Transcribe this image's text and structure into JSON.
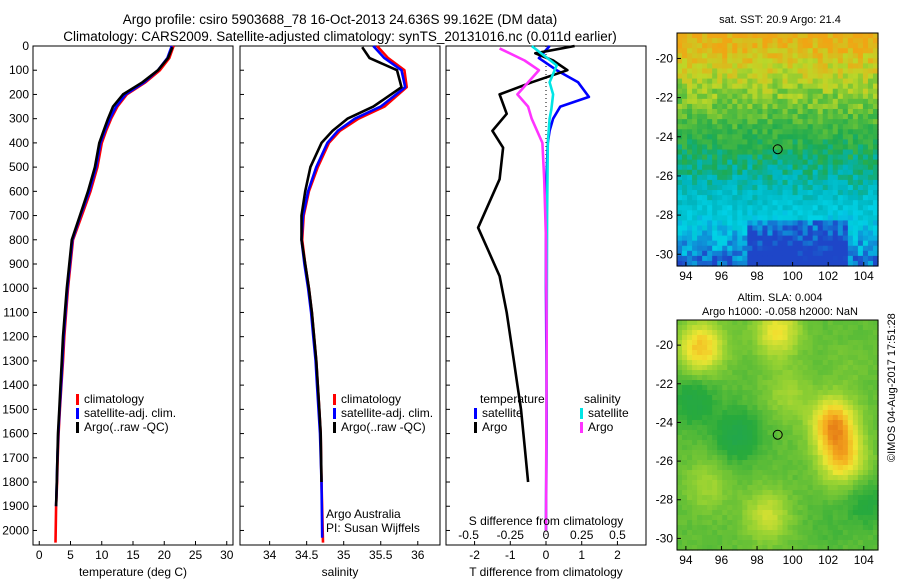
{
  "title": {
    "line1": "Argo profile: csiro 5903688_78 16-Oct-2013 24.636S 99.162E (DM data)",
    "line2": "Climatology: CARS2009. Satellite-adjusted climatology: synTS_20131016.nc (0.011d earlier)"
  },
  "credit": "©IMOS 04-Aug-2017 17:51:28",
  "colors": {
    "climatology": "#ff0000",
    "satellite": "#0000ff",
    "argo": "#000000",
    "sat_sal": "#00e5e5",
    "argo_sal": "#ff33ff"
  },
  "chart_data": [
    {
      "type": "line",
      "id": "temperature-profile",
      "xlabel": "temperature (deg C)",
      "ylabel": "pressure (dbar)",
      "xlim": [
        -1,
        31
      ],
      "ylim": [
        2060,
        0
      ],
      "xticks": [
        0,
        5,
        10,
        15,
        20,
        25,
        30
      ],
      "yticks": [
        0,
        100,
        200,
        300,
        400,
        500,
        600,
        700,
        800,
        900,
        1000,
        1100,
        1200,
        1300,
        1400,
        1500,
        1600,
        1700,
        1800,
        1900,
        2000
      ],
      "legend": [
        "climatology",
        "satellite-adj. clim.",
        "Argo(..raw -QC)"
      ],
      "series": [
        {
          "name": "climatology",
          "color": "#ff0000",
          "x": [
            21.5,
            20.8,
            19.3,
            17.0,
            14.0,
            12.5,
            11.5,
            10.7,
            10.0,
            9.3,
            8.2,
            6.8,
            5.4,
            5.0,
            4.6,
            4.3,
            4.0,
            3.8,
            3.55,
            3.3,
            3.1,
            2.95,
            2.85,
            2.7,
            2.6
          ],
          "y": [
            0,
            50,
            100,
            150,
            200,
            250,
            300,
            350,
            400,
            500,
            600,
            700,
            800,
            900,
            1000,
            1100,
            1200,
            1300,
            1400,
            1500,
            1600,
            1700,
            1800,
            1900,
            2050
          ]
        },
        {
          "name": "satellite-adj. clim.",
          "color": "#0000ff",
          "x": [
            21.2,
            20.5,
            19.0,
            16.8,
            13.8,
            12.3,
            11.3,
            10.5,
            9.8,
            9.1,
            8.0,
            6.6,
            5.3,
            4.9,
            4.5,
            4.2,
            3.9,
            3.7,
            3.5,
            3.25,
            3.05,
            2.9,
            2.8,
            2.7
          ],
          "y": [
            0,
            50,
            100,
            150,
            200,
            250,
            300,
            350,
            400,
            500,
            600,
            700,
            800,
            900,
            1000,
            1100,
            1200,
            1300,
            1400,
            1500,
            1600,
            1700,
            1800,
            1900
          ]
        },
        {
          "name": "Argo(..raw -QC)",
          "color": "#000000",
          "x": [
            21.3,
            20.6,
            19.0,
            16.5,
            13.4,
            11.8,
            11.0,
            10.3,
            9.6,
            8.9,
            7.8,
            6.5,
            5.2,
            4.8,
            4.4,
            4.1,
            3.8,
            3.6,
            3.4,
            3.2,
            3.0,
            2.9,
            2.8,
            2.7
          ],
          "y": [
            5,
            50,
            100,
            150,
            200,
            250,
            300,
            350,
            400,
            500,
            600,
            700,
            800,
            900,
            1000,
            1100,
            1200,
            1300,
            1400,
            1500,
            1600,
            1700,
            1800,
            1900
          ]
        }
      ]
    },
    {
      "type": "line",
      "id": "salinity-profile",
      "xlabel": "salinity",
      "ylabel": "pressure (dbar)",
      "xlim": [
        33.6,
        36.3
      ],
      "ylim": [
        2060,
        0
      ],
      "xticks": [
        34,
        34.5,
        35,
        35.5,
        36
      ],
      "xticklabels": [
        "34",
        "34.5",
        "35",
        "35.5",
        "36"
      ],
      "legend": [
        "climatology",
        "satellite-adj. clim.",
        "Argo(..raw -QC)"
      ],
      "note": [
        "Argo Australia",
        "PI: Susan Wijffels"
      ],
      "series": [
        {
          "name": "climatology",
          "color": "#ff0000",
          "x": [
            35.45,
            35.6,
            35.82,
            35.85,
            35.55,
            35.2,
            34.95,
            34.8,
            34.65,
            34.53,
            34.46,
            34.44,
            34.48,
            34.53,
            34.57,
            34.6,
            34.63,
            34.65,
            34.67,
            34.69,
            34.7,
            34.72
          ],
          "y": [
            0,
            50,
            100,
            170,
            250,
            300,
            350,
            400,
            500,
            600,
            700,
            800,
            900,
            1000,
            1100,
            1200,
            1300,
            1400,
            1500,
            1600,
            1800,
            2050
          ]
        },
        {
          "name": "satellite-adj. clim.",
          "color": "#0000ff",
          "x": [
            35.4,
            35.55,
            35.78,
            35.83,
            35.5,
            35.15,
            34.92,
            34.78,
            34.63,
            34.52,
            34.45,
            34.43,
            34.47,
            34.52,
            34.56,
            34.59,
            34.62,
            34.64,
            34.66,
            34.68,
            34.7,
            34.71
          ],
          "y": [
            0,
            50,
            100,
            170,
            250,
            300,
            350,
            400,
            500,
            600,
            700,
            800,
            900,
            1000,
            1100,
            1200,
            1300,
            1400,
            1500,
            1600,
            1800,
            2030
          ]
        },
        {
          "name": "Argo(..raw -QC)",
          "color": "#000000",
          "x": [
            35.25,
            35.35,
            35.72,
            35.78,
            35.4,
            35.05,
            34.85,
            34.7,
            34.55,
            34.48,
            34.43,
            34.43,
            34.48,
            34.53,
            34.57,
            34.6,
            34.63,
            34.65,
            34.67,
            34.69,
            34.7
          ],
          "y": [
            5,
            50,
            100,
            170,
            250,
            300,
            350,
            400,
            500,
            600,
            700,
            800,
            900,
            1000,
            1100,
            1200,
            1300,
            1400,
            1500,
            1600,
            1800
          ]
        }
      ]
    },
    {
      "type": "line",
      "id": "difference-profile",
      "xlabel": "T difference from climatology",
      "toplabel": "S difference from climatology",
      "xlim": [
        -2.8,
        2.8
      ],
      "ylim": [
        2060,
        0
      ],
      "xticks": [
        -2,
        -1,
        0,
        1,
        2
      ],
      "topticks": [
        -0.5,
        -0.25,
        0,
        0.25,
        0.5
      ],
      "topticklabels": [
        "-0.5",
        "-0.25",
        "0",
        "0.25",
        "0.5"
      ],
      "legend": {
        "temperature": [
          "satellite",
          "Argo"
        ],
        "salinity": [
          "satellite",
          "Argo"
        ],
        "temperature_title": "temperature",
        "salinity_title": "salinity"
      },
      "series": [
        {
          "name": "temperature satellite",
          "color": "#0000ff",
          "x": [
            0.1,
            -0.2,
            0.3,
            0.9,
            1.2,
            0.4,
            0.2,
            0.1,
            0.05,
            0.0,
            0.0,
            0.02,
            0.0
          ],
          "y": [
            0,
            50,
            100,
            150,
            210,
            250,
            300,
            350,
            400,
            600,
            1000,
            1500,
            2000
          ]
        },
        {
          "name": "temperature Argo",
          "color": "#000000",
          "x": [
            0.8,
            -0.3,
            0.2,
            0.6,
            -0.4,
            -1.3,
            -1.1,
            -1.5,
            -1.2,
            -1.3,
            -1.9,
            -1.6,
            -1.3,
            -1.1,
            -0.9,
            -0.8,
            -0.7,
            -0.6,
            -0.5
          ],
          "y": [
            0,
            30,
            60,
            100,
            150,
            200,
            280,
            350,
            420,
            550,
            750,
            850,
            950,
            1100,
            1300,
            1400,
            1500,
            1650,
            1800
          ]
        },
        {
          "name": "salinity satellite",
          "color": "#00e5e5",
          "x": [
            -0.4,
            0.3,
            0.1,
            0.2,
            0.15,
            0.1,
            0.05,
            0.03,
            0.02,
            0.0
          ],
          "y": [
            0,
            80,
            150,
            200,
            260,
            300,
            400,
            700,
            1200,
            2000
          ]
        },
        {
          "name": "salinity Argo",
          "color": "#ff33ff",
          "x": [
            -1.3,
            -0.6,
            -0.2,
            -0.8,
            -0.5,
            -0.4,
            -0.1,
            -0.05,
            0.0,
            0.02,
            0.0
          ],
          "y": [
            10,
            60,
            100,
            200,
            250,
            300,
            400,
            550,
            800,
            1200,
            2000
          ]
        }
      ]
    },
    {
      "type": "heatmap",
      "id": "sst-map",
      "title": "sat. SST: 20.9 Argo: 21.4",
      "xlim": [
        93.5,
        104.8
      ],
      "ylim": [
        -30.6,
        -18.7
      ],
      "xticks": [
        94,
        96,
        98,
        100,
        102,
        104
      ],
      "yticks": [
        -20,
        -22,
        -24,
        -26,
        -28,
        -30
      ],
      "xticklabels": [
        "94",
        "96",
        "98",
        "100",
        "102",
        "104"
      ],
      "yticklabels": [
        "-20",
        "-22",
        "-24",
        "-26",
        "-28",
        "-30"
      ],
      "marker": {
        "lon": 99.162,
        "lat": -24.636
      }
    },
    {
      "type": "heatmap",
      "id": "sla-map",
      "title_line1": "Altim. SLA: 0.004",
      "title_line2": "Argo h1000: -0.058 h2000: NaN",
      "xlim": [
        93.5,
        104.8
      ],
      "ylim": [
        -30.6,
        -18.7
      ],
      "xticks": [
        94,
        96,
        98,
        100,
        102,
        104
      ],
      "yticks": [
        -20,
        -22,
        -24,
        -26,
        -28,
        -30
      ],
      "xticklabels": [
        "94",
        "96",
        "98",
        "100",
        "102",
        "104"
      ],
      "yticklabels": [
        "-20",
        "-22",
        "-24",
        "-26",
        "-28",
        "-30"
      ],
      "marker": {
        "lon": 99.162,
        "lat": -24.636
      }
    }
  ]
}
